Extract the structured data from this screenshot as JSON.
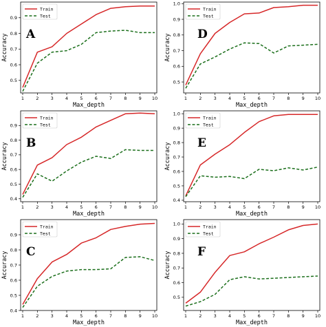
{
  "chart_data": [
    {
      "type": "line",
      "panel_letter": "A",
      "xlabel": "Max_depth",
      "ylabel": "Accuracy",
      "x": [
        1,
        2,
        3,
        4,
        5,
        6,
        7,
        8,
        9,
        10
      ],
      "xlim": [
        1,
        10
      ],
      "ylim": [
        0.42,
        1.0
      ],
      "yticks": [
        0.5,
        0.6,
        0.7,
        0.8,
        0.9
      ],
      "legend": "top-left",
      "series": [
        {
          "name": "Train",
          "color": "#d62728",
          "style": "solid",
          "values": [
            0.455,
            0.68,
            0.715,
            0.8,
            0.86,
            0.92,
            0.96,
            0.97,
            0.975,
            0.975
          ]
        },
        {
          "name": "Test",
          "color": "#1a6e1a",
          "style": "dashed",
          "values": [
            0.43,
            0.61,
            0.68,
            0.69,
            0.73,
            0.805,
            0.815,
            0.82,
            0.805,
            0.805
          ]
        }
      ]
    },
    {
      "type": "line",
      "panel_letter": "D",
      "xlabel": "Max_depth",
      "ylabel": "Accuracy",
      "x": [
        1,
        2,
        3,
        4,
        5,
        6,
        7,
        8,
        9,
        10
      ],
      "xlim": [
        1,
        10
      ],
      "ylim": [
        0.43,
        1.01
      ],
      "yticks": [
        0.5,
        0.6,
        0.7,
        0.8,
        0.9,
        1.0
      ],
      "legend": "top-left",
      "series": [
        {
          "name": "Train",
          "color": "#d62728",
          "style": "solid",
          "values": [
            0.48,
            0.68,
            0.81,
            0.88,
            0.935,
            0.94,
            0.975,
            0.98,
            0.99,
            0.99
          ]
        },
        {
          "name": "Test",
          "color": "#1a6e1a",
          "style": "dashed",
          "values": [
            0.46,
            0.615,
            0.66,
            0.71,
            0.75,
            0.745,
            0.685,
            0.73,
            0.735,
            0.74
          ]
        }
      ]
    },
    {
      "type": "line",
      "panel_letter": "B",
      "xlabel": "Max_depth",
      "ylabel": "Accuracy",
      "x": [
        1,
        2,
        3,
        4,
        5,
        6,
        7,
        8,
        9,
        10
      ],
      "xlim": [
        1,
        10
      ],
      "ylim": [
        0.38,
        1.0
      ],
      "yticks": [
        0.4,
        0.5,
        0.6,
        0.7,
        0.8,
        0.9
      ],
      "legend": "top-left",
      "series": [
        {
          "name": "Train",
          "color": "#d62728",
          "style": "solid",
          "values": [
            0.43,
            0.63,
            0.68,
            0.77,
            0.82,
            0.89,
            0.935,
            0.98,
            0.985,
            0.98
          ]
        },
        {
          "name": "Test",
          "color": "#1a6e1a",
          "style": "dashed",
          "values": [
            0.41,
            0.57,
            0.52,
            0.59,
            0.65,
            0.69,
            0.675,
            0.735,
            0.73,
            0.73
          ]
        }
      ]
    },
    {
      "type": "line",
      "panel_letter": "E",
      "xlabel": "Max_depth",
      "ylabel": "Accuracy",
      "x": [
        1,
        2,
        3,
        4,
        5,
        6,
        7,
        8,
        9,
        10
      ],
      "xlim": [
        1,
        10
      ],
      "ylim": [
        0.39,
        1.02
      ],
      "yticks": [
        0.4,
        0.5,
        0.6,
        0.7,
        0.8,
        0.9,
        1.0
      ],
      "legend": "top-left",
      "series": [
        {
          "name": "Train",
          "color": "#d62728",
          "style": "solid",
          "values": [
            0.43,
            0.645,
            0.72,
            0.785,
            0.87,
            0.945,
            0.985,
            0.995,
            0.995,
            0.995
          ]
        },
        {
          "name": "Test",
          "color": "#1a6e1a",
          "style": "dashed",
          "values": [
            0.425,
            0.57,
            0.56,
            0.565,
            0.55,
            0.615,
            0.605,
            0.625,
            0.61,
            0.63
          ]
        }
      ]
    },
    {
      "type": "line",
      "panel_letter": "C",
      "xlabel": "Max_depth",
      "ylabel": "Accuracy",
      "x": [
        1,
        2,
        3,
        4,
        5,
        6,
        7,
        8,
        9,
        10
      ],
      "xlim": [
        1,
        10
      ],
      "ylim": [
        0.4,
        1.0
      ],
      "yticks": [
        0.4,
        0.5,
        0.6,
        0.7,
        0.8,
        0.9
      ],
      "legend": "top-left",
      "series": [
        {
          "name": "Train",
          "color": "#d62728",
          "style": "solid",
          "values": [
            0.44,
            0.61,
            0.72,
            0.77,
            0.845,
            0.88,
            0.935,
            0.955,
            0.97,
            0.975
          ]
        },
        {
          "name": "Test",
          "color": "#1a6e1a",
          "style": "dashed",
          "values": [
            0.42,
            0.56,
            0.625,
            0.66,
            0.67,
            0.67,
            0.675,
            0.75,
            0.755,
            0.73
          ]
        }
      ]
    },
    {
      "type": "line",
      "panel_letter": "F",
      "xlabel": "Max_depth",
      "ylabel": "Accuracy",
      "x": [
        1,
        2,
        3,
        4,
        5,
        6,
        7,
        8,
        9,
        10
      ],
      "xlim": [
        1,
        10
      ],
      "ylim": [
        0.41,
        1.03
      ],
      "yticks": [
        0.5,
        0.6,
        0.7,
        0.8,
        0.9,
        1.0
      ],
      "legend": "top-left",
      "series": [
        {
          "name": "Train",
          "color": "#d62728",
          "style": "solid",
          "values": [
            0.46,
            0.535,
            0.67,
            0.785,
            0.81,
            0.865,
            0.91,
            0.96,
            0.99,
            1.0
          ]
        },
        {
          "name": "Test",
          "color": "#1a6e1a",
          "style": "dashed",
          "values": [
            0.44,
            0.47,
            0.52,
            0.62,
            0.64,
            0.625,
            0.63,
            0.635,
            0.64,
            0.645
          ]
        }
      ]
    }
  ]
}
